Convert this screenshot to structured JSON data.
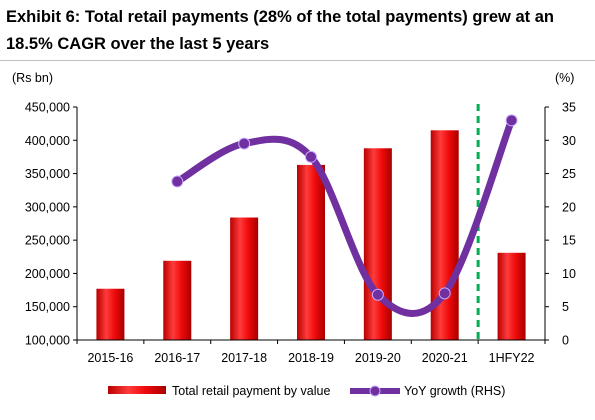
{
  "title": "Exhibit 6: Total retail payments (28% of the total payments) grew at an 18.5% CAGR over the last 5 years",
  "chart_data": {
    "type": "bar+line",
    "categories": [
      "2015-16",
      "2016-17",
      "2017-18",
      "2018-19",
      "2019-20",
      "2020-21",
      "1HFY22"
    ],
    "left_axis": {
      "label": "(Rs bn)",
      "min": 100000,
      "max": 450000,
      "ticks": [
        100000,
        150000,
        200000,
        250000,
        300000,
        350000,
        400000,
        450000
      ],
      "tick_labels": [
        "100,000",
        "150,000",
        "200,000",
        "250,000",
        "300,000",
        "350,000",
        "400,000",
        "450,000"
      ]
    },
    "right_axis": {
      "label": "(%)",
      "min": 0,
      "max": 35,
      "ticks": [
        0,
        5,
        10,
        15,
        20,
        25,
        30,
        35
      ],
      "tick_labels": [
        "0",
        "5",
        "10",
        "15",
        "20",
        "25",
        "30",
        "35"
      ]
    },
    "series": [
      {
        "name": "Total retail payment by value",
        "kind": "bar",
        "axis": "left",
        "color": "#e8060a",
        "values": [
          177000,
          219000,
          284000,
          363000,
          388000,
          415000,
          231000
        ]
      },
      {
        "name": "YoY growth (RHS)",
        "kind": "line",
        "axis": "right",
        "color": "#7030a0",
        "values": [
          null,
          23.8,
          29.5,
          27.5,
          6.8,
          7.0,
          33.0
        ]
      }
    ],
    "divider": {
      "after_category": "2020-21",
      "style": "dashed",
      "color": "#00b050"
    },
    "legend_position": "bottom",
    "grid": false
  }
}
